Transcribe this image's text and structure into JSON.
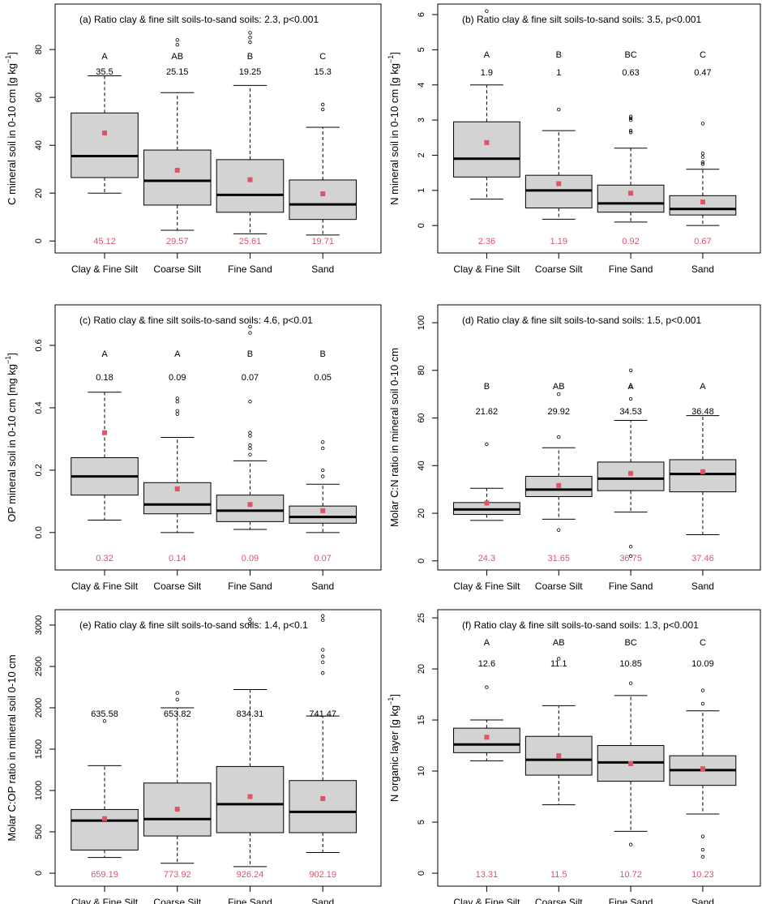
{
  "chart_data": [
    {
      "type": "box",
      "title": "(a) Ratio clay & fine silt soils-to-sand soils: 2.3, p<0.001",
      "ylabel": "C mineral soil in 0-10 cm [g kg",
      "ylabel_sup": "−1",
      "ylabel_end": "]",
      "categories": [
        "Clay & Fine Silt",
        "Coarse Silt",
        "Fine Sand",
        "Sand"
      ],
      "boxes": [
        {
          "whisker_low": 20,
          "q1": 26.5,
          "median": 35.5,
          "q3": 53.5,
          "whisker_high": 69,
          "outliers": []
        },
        {
          "whisker_low": 4.5,
          "q1": 15,
          "median": 25.15,
          "q3": 38,
          "whisker_high": 62,
          "outliers": [
            82,
            84
          ]
        },
        {
          "whisker_low": 3,
          "q1": 12,
          "median": 19.25,
          "q3": 34,
          "whisker_high": 65,
          "outliers": [
            83,
            85,
            87
          ]
        },
        {
          "whisker_low": 2.5,
          "q1": 9,
          "median": 15.3,
          "q3": 25.5,
          "whisker_high": 47.5,
          "outliers": [
            55,
            57
          ]
        }
      ],
      "means": [
        45.12,
        29.57,
        25.61,
        19.71
      ],
      "letters": [
        "A",
        "AB",
        "B",
        "C"
      ],
      "color": "#d3d3d3",
      "mean_color": "#df536b",
      "ylim": [
        -5,
        99
      ],
      "yticks": [
        0,
        20,
        40,
        60,
        80
      ]
    },
    {
      "type": "box",
      "title": "(b) Ratio clay & fine silt soils-to-sand soils: 3.5, p<0.001",
      "ylabel": "N mineral soil in 0-10 cm [g kg",
      "ylabel_sup": "−1",
      "ylabel_end": "]",
      "categories": [
        "Clay & Fine Silt",
        "Coarse Silt",
        "Fine Sand",
        "Sand"
      ],
      "boxes": [
        {
          "whisker_low": 0.75,
          "q1": 1.38,
          "median": 1.9,
          "q3": 2.95,
          "whisker_high": 4.0,
          "outliers": [
            6.1
          ]
        },
        {
          "whisker_low": 0.18,
          "q1": 0.5,
          "median": 1,
          "q3": 1.43,
          "whisker_high": 2.7,
          "outliers": [
            3.3
          ]
        },
        {
          "whisker_low": 0.1,
          "q1": 0.38,
          "median": 0.63,
          "q3": 1.15,
          "whisker_high": 2.2,
          "outliers": [
            2.65,
            2.7,
            3.0,
            3.05,
            3.1
          ]
        },
        {
          "whisker_low": 0,
          "q1": 0.3,
          "median": 0.47,
          "q3": 0.85,
          "whisker_high": 1.6,
          "outliers": [
            1.75,
            1.8,
            1.95,
            2.05,
            2.9
          ]
        }
      ],
      "means": [
        2.36,
        1.19,
        0.92,
        0.67
      ],
      "letters": [
        "A",
        "B",
        "BC",
        "C"
      ],
      "color": "#d3d3d3",
      "mean_color": "#df536b",
      "ylim": [
        -0.78,
        6.3
      ],
      "yticks": [
        0,
        1,
        2,
        3,
        4,
        5,
        6
      ]
    },
    {
      "type": "box",
      "title": "(c) Ratio clay & fine silt soils-to-sand soils: 4.6, p<0.01",
      "ylabel": "OP mineral soil in 0-10 cm [mg kg",
      "ylabel_sup": "−1",
      "ylabel_end": "]",
      "categories": [
        "Clay & Fine Silt",
        "Coarse Silt",
        "Fine Sand",
        "Sand"
      ],
      "boxes": [
        {
          "whisker_low": 0.04,
          "q1": 0.12,
          "median": 0.18,
          "q3": 0.24,
          "whisker_high": 0.45,
          "outliers": []
        },
        {
          "whisker_low": 0,
          "q1": 0.06,
          "median": 0.09,
          "q3": 0.16,
          "whisker_high": 0.305,
          "outliers": [
            0.38,
            0.39,
            0.42,
            0.43
          ]
        },
        {
          "whisker_low": 0.01,
          "q1": 0.035,
          "median": 0.07,
          "q3": 0.12,
          "whisker_high": 0.23,
          "outliers": [
            0.25,
            0.27,
            0.28,
            0.31,
            0.32,
            0.42,
            0.64,
            0.66
          ]
        },
        {
          "whisker_low": 0,
          "q1": 0.03,
          "median": 0.05,
          "q3": 0.085,
          "whisker_high": 0.155,
          "outliers": [
            0.18,
            0.2,
            0.27,
            0.29
          ]
        }
      ],
      "means": [
        0.32,
        0.14,
        0.09,
        0.07
      ],
      "letters": [
        "A",
        "A",
        "B",
        "B"
      ],
      "color": "#d3d3d3",
      "mean_color": "#df536b",
      "ylim": [
        -0.12,
        0.73
      ],
      "yticks": [
        {
          "value": 0,
          "label": "0.0"
        },
        0.2,
        0.4,
        0.6
      ]
    },
    {
      "type": "box",
      "title": "(d) Ratio clay & fine silt soils-to-sand soils: 1.5, p<0.001",
      "ylabel": "Molar C:N ratio in mineral soil 0-10 cm",
      "categories": [
        "Clay & Fine Silt",
        "Coarse Silt",
        "Fine Sand",
        "Sand"
      ],
      "boxes": [
        {
          "whisker_low": 17,
          "q1": 19.5,
          "median": 21.62,
          "q3": 24.5,
          "whisker_high": 30.5,
          "outliers": [
            49
          ]
        },
        {
          "whisker_low": 17.5,
          "q1": 27,
          "median": 29.92,
          "q3": 35.5,
          "whisker_high": 47.5,
          "outliers": [
            13,
            52,
            70
          ]
        },
        {
          "whisker_low": 20.5,
          "q1": 29.5,
          "median": 34.53,
          "q3": 41.5,
          "whisker_high": 59,
          "outliers": [
            2,
            6,
            68,
            73,
            80
          ]
        },
        {
          "whisker_low": 11,
          "q1": 29,
          "median": 36.48,
          "q3": 42.5,
          "whisker_high": 61,
          "outliers": []
        }
      ],
      "means": [
        24.3,
        31.65,
        36.75,
        37.46
      ],
      "letters": [
        "B",
        "AB",
        "A",
        "A"
      ],
      "color": "#d3d3d3",
      "mean_color": "#df536b",
      "ylim": [
        -3.8,
        107.5
      ],
      "yticks": [
        0,
        20,
        40,
        60,
        80,
        100
      ]
    },
    {
      "type": "box",
      "title": "(e) Ratio clay & fine silt soils-to-sand soils: 1.4, p<0.1",
      "ylabel": "Molar C:OP ratio in mineral soil 0-10 cm",
      "categories": [
        "Clay & Fine Silt",
        "Coarse Silt",
        "Fine Sand",
        "Sand"
      ],
      "boxes": [
        {
          "whisker_low": 190,
          "q1": 280,
          "median": 635.58,
          "q3": 770,
          "whisker_high": 1300,
          "outliers": [
            1840
          ]
        },
        {
          "whisker_low": 120,
          "q1": 450,
          "median": 653.82,
          "q3": 1090,
          "whisker_high": 2000,
          "outliers": [
            2100,
            2180
          ]
        },
        {
          "whisker_low": 80,
          "q1": 490,
          "median": 834.31,
          "q3": 1290,
          "whisker_high": 2220,
          "outliers": [
            3020,
            3070
          ]
        },
        {
          "whisker_low": 250,
          "q1": 490,
          "median": 741.47,
          "q3": 1120,
          "whisker_high": 1900,
          "outliers": [
            2420,
            2550,
            2620,
            2700,
            3060,
            3110
          ]
        }
      ],
      "means": [
        659.19,
        773.92,
        926.24,
        902.19
      ],
      "color": "#d3d3d3",
      "mean_color": "#df536b",
      "ylim": [
        -157,
        3186
      ],
      "yticks": [
        0,
        500,
        1000,
        1500,
        2000,
        2500,
        3000
      ]
    },
    {
      "type": "box",
      "title": "(f) Ratio clay & fine silt soils-to-sand soils: 1.3, p<0.001",
      "ylabel": "N organic layer [g kg",
      "ylabel_sup": "−1",
      "ylabel_end": "]",
      "categories": [
        "Clay & Fine Silt",
        "Coarse Silt",
        "Fine Sand",
        "Sand"
      ],
      "boxes": [
        {
          "whisker_low": 11,
          "q1": 11.8,
          "median": 12.6,
          "q3": 14.2,
          "whisker_high": 15,
          "outliers": [
            18.2
          ]
        },
        {
          "whisker_low": 6.7,
          "q1": 9.6,
          "median": 11.1,
          "q3": 13.4,
          "whisker_high": 16.4,
          "outliers": [
            21
          ]
        },
        {
          "whisker_low": 4.1,
          "q1": 9,
          "median": 10.85,
          "q3": 12.5,
          "whisker_high": 17.4,
          "outliers": [
            2.8,
            18.6
          ]
        },
        {
          "whisker_low": 5.8,
          "q1": 8.6,
          "median": 10.09,
          "q3": 11.5,
          "whisker_high": 15.9,
          "outliers": [
            1.6,
            2.3,
            3.6,
            16.6,
            17.9
          ]
        }
      ],
      "means": [
        13.31,
        11.5,
        10.72,
        10.23
      ],
      "letters": [
        "A",
        "AB",
        "BC",
        "C"
      ],
      "color": "#d3d3d3",
      "mean_color": "#df536b",
      "ylim": [
        -1.27,
        25.8
      ],
      "yticks": [
        0,
        5,
        10,
        15,
        20,
        25
      ]
    }
  ]
}
